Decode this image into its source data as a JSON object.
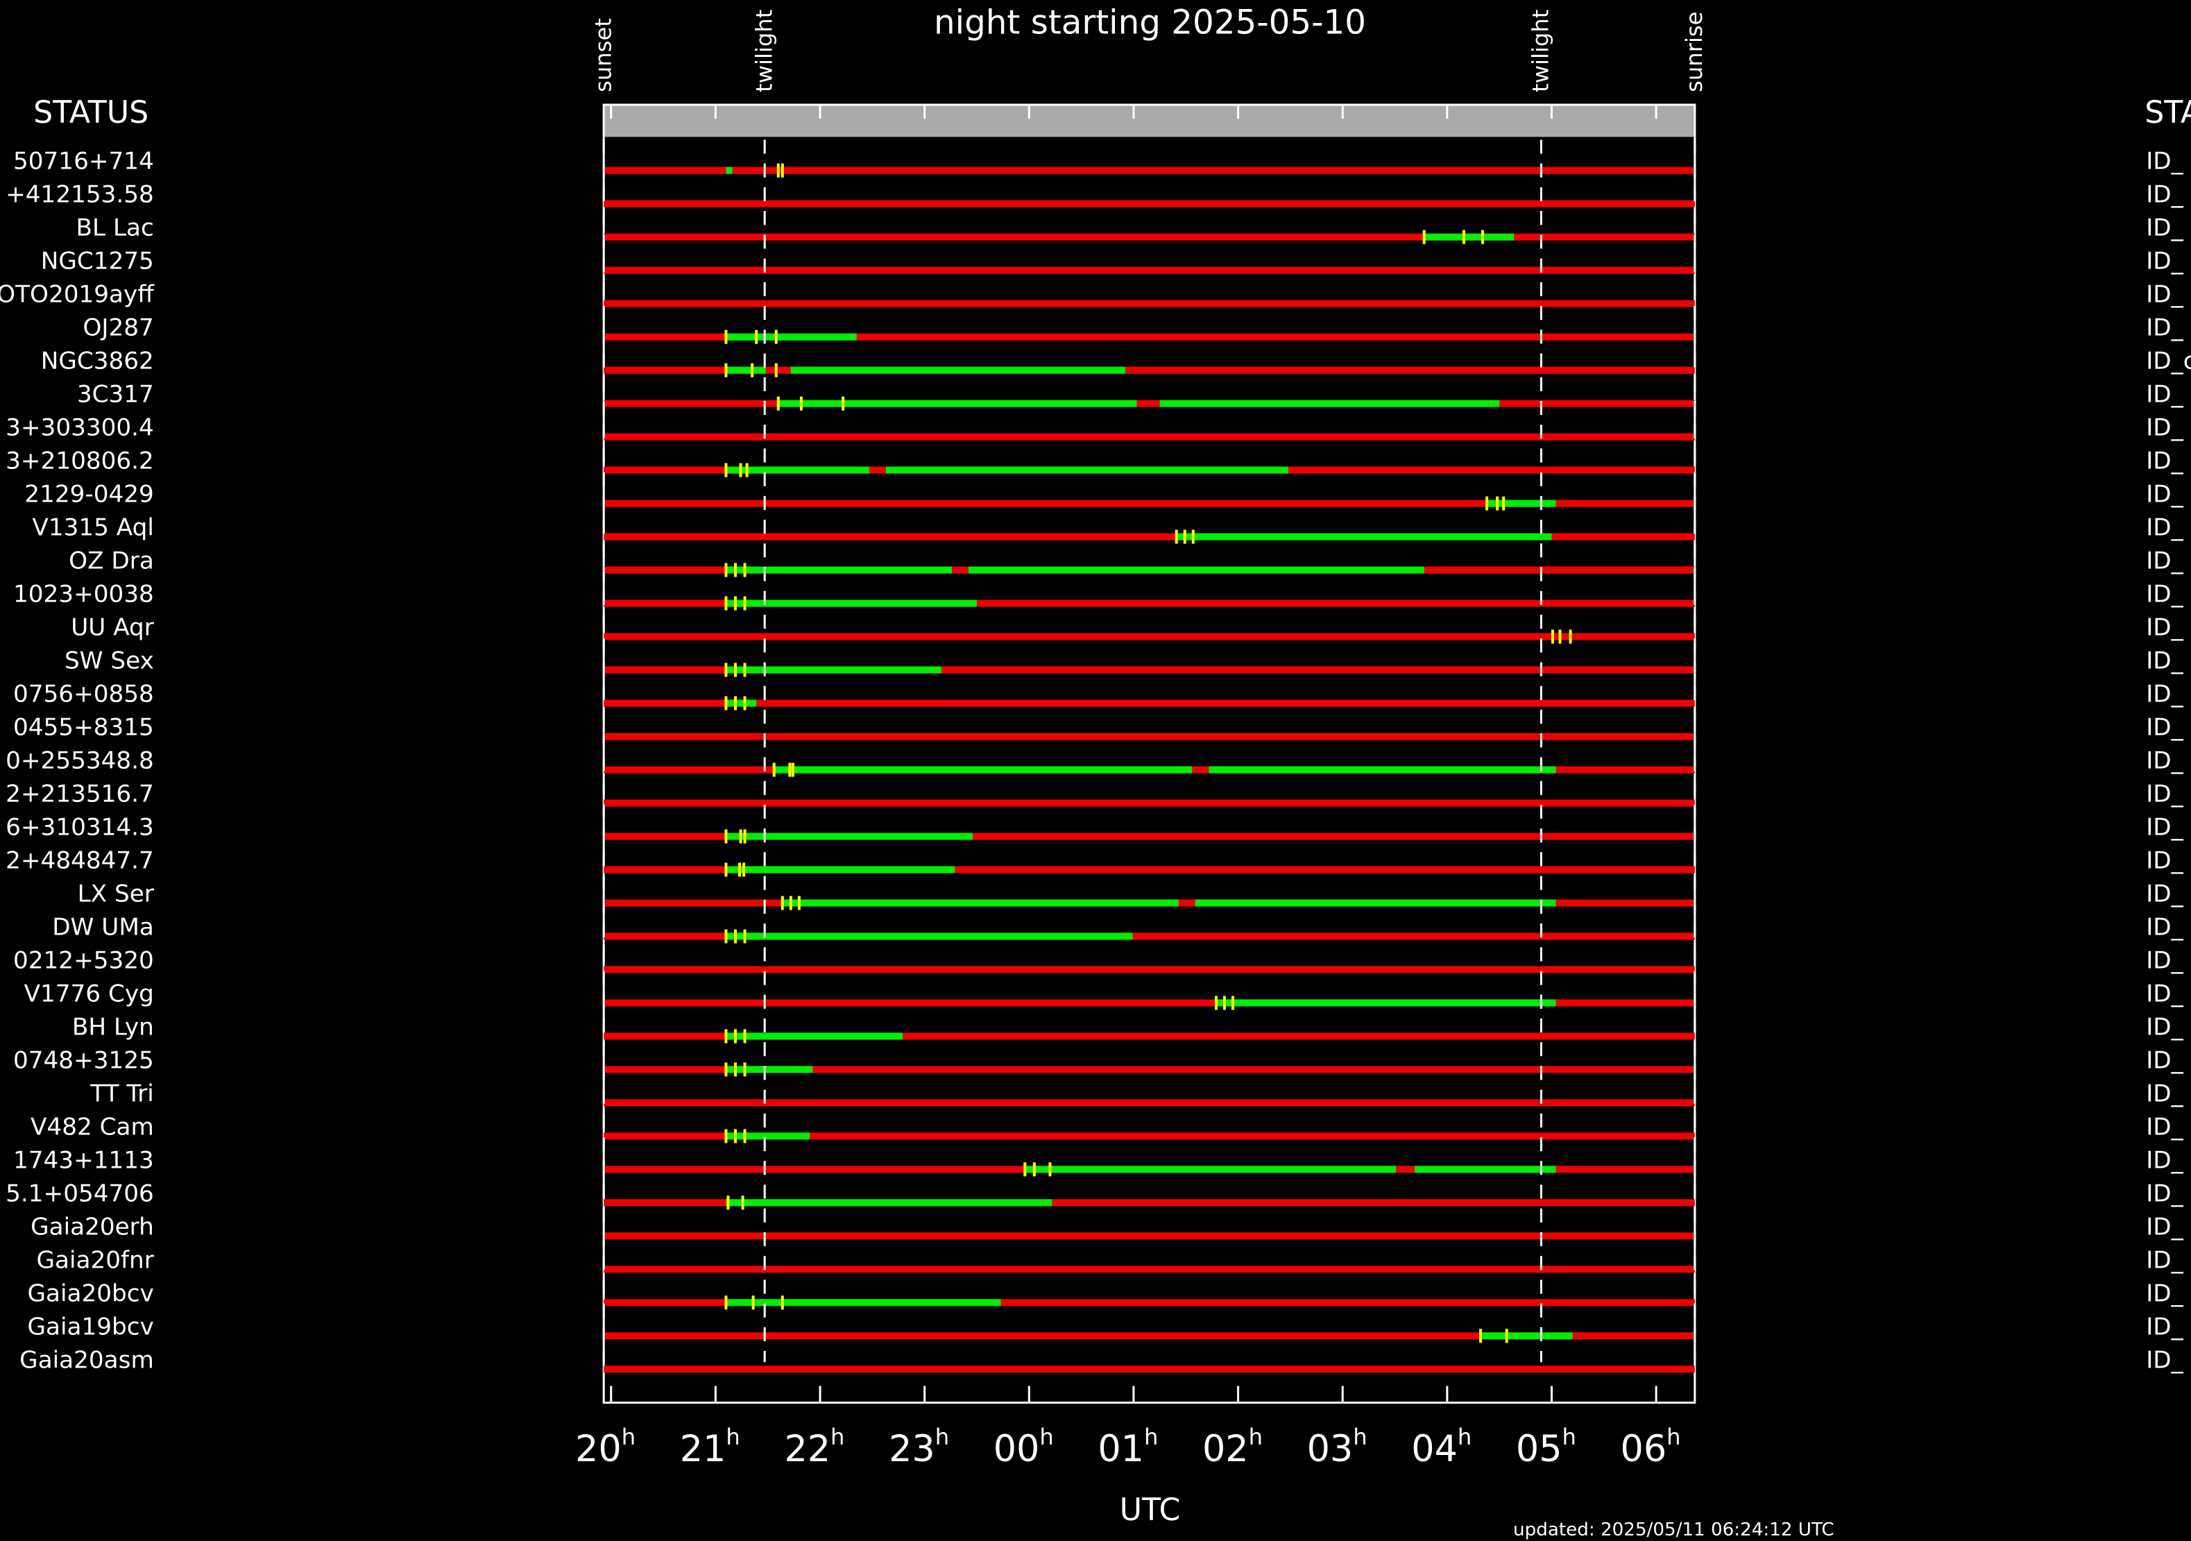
{
  "chart_data": {
    "type": "timeline",
    "title": "night starting 2025-05-10",
    "left_header": "STATUS",
    "right_header": "STA",
    "x_label": "UTC",
    "updated": "updated: 2025/05/11 06:24:12 UTC",
    "tick_unit": "h",
    "xlim": [
      19.93,
      30.37
    ],
    "xticks": [
      20,
      21,
      22,
      23,
      {
        "value": 24,
        "label": "00"
      },
      {
        "value": 25,
        "label": "01"
      },
      {
        "value": 26,
        "label": "02"
      },
      {
        "value": 27,
        "label": "03"
      },
      {
        "value": 28,
        "label": "04"
      },
      {
        "value": 29,
        "label": "05"
      },
      {
        "value": 30,
        "label": "06"
      }
    ],
    "events": [
      {
        "label": "sunset",
        "value": 19.93
      },
      {
        "label": "twilight",
        "value": 21.47
      },
      {
        "label": "twilight",
        "value": 28.9
      },
      {
        "label": "sunrise",
        "value": 30.37
      }
    ],
    "colors": {
      "unavailable": "#ee0000",
      "window": "#00ee00",
      "mark": "#ffff00"
    },
    "rows": [
      {
        "name": "50716+714",
        "id": "ID_",
        "windows": [
          [
            21.1,
            21.16
          ]
        ],
        "marks": [
          21.6,
          21.64
        ]
      },
      {
        "name": "+412153.58",
        "id": "ID_",
        "windows": [],
        "marks": []
      },
      {
        "name": "BL Lac",
        "id": "ID_",
        "windows": [
          [
            27.78,
            28.64
          ]
        ],
        "marks": [
          27.78,
          28.16,
          28.34
        ]
      },
      {
        "name": "NGC1275",
        "id": "ID_",
        "windows": [],
        "marks": []
      },
      {
        "name": "OTO2019ayff",
        "id": "ID_",
        "windows": [],
        "marks": []
      },
      {
        "name": "OJ287",
        "id": "ID_",
        "windows": [
          [
            21.1,
            22.35
          ]
        ],
        "marks": [
          21.1,
          21.39,
          21.58
        ]
      },
      {
        "name": "NGC3862",
        "id": "ID_c",
        "windows": [
          [
            21.1,
            21.48
          ],
          [
            21.72,
            24.92
          ]
        ],
        "marks": [
          21.1,
          21.35,
          21.58
        ]
      },
      {
        "name": "3C317",
        "id": "ID_",
        "windows": [
          [
            21.6,
            25.03
          ],
          [
            25.25,
            28.5
          ]
        ],
        "marks": [
          21.6,
          21.82,
          22.22
        ]
      },
      {
        "name": "3+303300.4",
        "id": "ID_",
        "windows": [],
        "marks": []
      },
      {
        "name": "3+210806.2",
        "id": "ID_",
        "windows": [
          [
            21.1,
            22.47
          ],
          [
            22.63,
            26.48
          ]
        ],
        "marks": [
          21.1,
          21.24,
          21.3
        ]
      },
      {
        "name": "2129-0429",
        "id": "ID_",
        "windows": [
          [
            28.38,
            29.04
          ]
        ],
        "marks": [
          28.38,
          28.48,
          28.54
        ]
      },
      {
        "name": "V1315 Aql",
        "id": "ID_",
        "windows": [
          [
            25.41,
            29.0
          ]
        ],
        "marks": [
          25.41,
          25.49,
          25.57
        ]
      },
      {
        "name": "OZ Dra",
        "id": "ID_",
        "windows": [
          [
            21.1,
            23.26
          ],
          [
            23.42,
            27.78
          ]
        ],
        "marks": [
          21.1,
          21.19,
          21.28
        ]
      },
      {
        "name": "1023+0038",
        "id": "ID_",
        "windows": [
          [
            21.1,
            23.5
          ]
        ],
        "marks": [
          21.1,
          21.19,
          21.28
        ]
      },
      {
        "name": "UU Aqr",
        "id": "ID_",
        "windows": [],
        "marks": [
          29.01,
          29.08,
          29.18
        ]
      },
      {
        "name": "SW Sex",
        "id": "ID_",
        "windows": [
          [
            21.1,
            23.16
          ]
        ],
        "marks": [
          21.1,
          21.19,
          21.28
        ]
      },
      {
        "name": "0756+0858",
        "id": "ID_",
        "windows": [
          [
            21.1,
            21.39
          ]
        ],
        "marks": [
          21.1,
          21.19,
          21.28
        ]
      },
      {
        "name": "0455+8315",
        "id": "ID_",
        "windows": [],
        "marks": []
      },
      {
        "name": "0+255348.8",
        "id": "ID_",
        "windows": [
          [
            21.56,
            25.56
          ],
          [
            25.72,
            29.04
          ]
        ],
        "marks": [
          21.56,
          21.71,
          21.74
        ]
      },
      {
        "name": "2+213516.7",
        "id": "ID_",
        "windows": [],
        "marks": []
      },
      {
        "name": "6+310314.3",
        "id": "ID_",
        "windows": [
          [
            21.1,
            23.46
          ]
        ],
        "marks": [
          21.1,
          21.24,
          21.28
        ]
      },
      {
        "name": "2+484847.7",
        "id": "ID_",
        "windows": [
          [
            21.1,
            23.29
          ]
        ],
        "marks": [
          21.1,
          21.23,
          21.27
        ]
      },
      {
        "name": "LX Ser",
        "id": "ID_",
        "windows": [
          [
            21.64,
            25.43
          ],
          [
            25.59,
            29.04
          ]
        ],
        "marks": [
          21.64,
          21.72,
          21.8
        ]
      },
      {
        "name": "DW UMa",
        "id": "ID_",
        "windows": [
          [
            21.1,
            24.99
          ]
        ],
        "marks": [
          21.1,
          21.19,
          21.28
        ]
      },
      {
        "name": "0212+5320",
        "id": "ID_",
        "windows": [],
        "marks": []
      },
      {
        "name": "V1776 Cyg",
        "id": "ID_",
        "windows": [
          [
            25.79,
            29.04
          ]
        ],
        "marks": [
          25.79,
          25.87,
          25.95
        ]
      },
      {
        "name": "BH Lyn",
        "id": "ID_",
        "windows": [
          [
            21.1,
            22.79
          ]
        ],
        "marks": [
          21.1,
          21.19,
          21.28
        ]
      },
      {
        "name": "0748+3125",
        "id": "ID_",
        "windows": [
          [
            21.1,
            21.93
          ]
        ],
        "marks": [
          21.1,
          21.19,
          21.28
        ]
      },
      {
        "name": "TT Tri",
        "id": "ID_",
        "windows": [],
        "marks": []
      },
      {
        "name": "V482 Cam",
        "id": "ID_",
        "windows": [
          [
            21.1,
            21.9
          ]
        ],
        "marks": [
          21.1,
          21.19,
          21.28
        ]
      },
      {
        "name": "1743+1113",
        "id": "ID_",
        "windows": [
          [
            23.96,
            27.51
          ],
          [
            27.69,
            29.04
          ]
        ],
        "marks": [
          23.96,
          24.05,
          24.2
        ]
      },
      {
        "name": "5.1+054706",
        "id": "ID_",
        "windows": [
          [
            21.1,
            24.22
          ]
        ],
        "marks": [
          21.12,
          21.26
        ]
      },
      {
        "name": "Gaia20erh",
        "id": "ID_",
        "windows": [],
        "marks": []
      },
      {
        "name": "Gaia20fnr",
        "id": "ID_",
        "windows": [],
        "marks": []
      },
      {
        "name": "Gaia20bcv",
        "id": "ID_",
        "windows": [
          [
            21.1,
            23.73
          ]
        ],
        "marks": [
          21.1,
          21.36,
          21.64
        ]
      },
      {
        "name": "Gaia19bcv",
        "id": "ID_",
        "windows": [
          [
            28.32,
            29.2
          ]
        ],
        "marks": [
          28.32,
          28.57
        ]
      },
      {
        "name": "Gaia20asm",
        "id": "ID_",
        "windows": [],
        "marks": []
      }
    ]
  }
}
